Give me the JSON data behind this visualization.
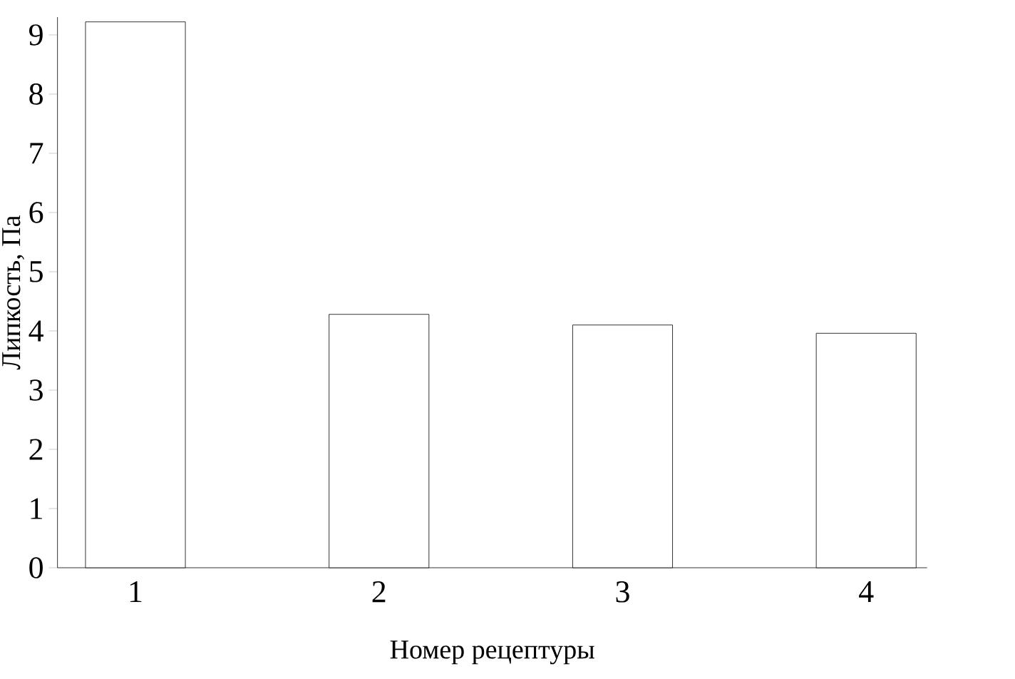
{
  "chart_data": {
    "type": "bar",
    "xlabel": "Номер рецептуры",
    "ylabel": "Липкость, Па",
    "categories": [
      "1",
      "2",
      "3",
      "4"
    ],
    "values": [
      9.22,
      4.28,
      4.1,
      3.96
    ],
    "color": "#000000",
    "ylim": [
      0,
      9.3
    ],
    "yticks": [
      0,
      1,
      2,
      3,
      4,
      5,
      6,
      7,
      8,
      9
    ],
    "grid": false
  }
}
